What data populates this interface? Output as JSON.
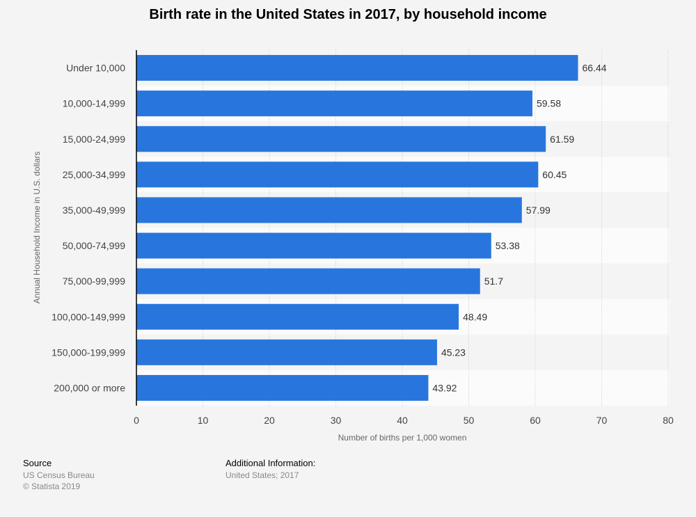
{
  "chart_data": {
    "type": "bar",
    "orientation": "horizontal",
    "title": "Birth rate in the United States in 2017, by household income",
    "ylabel": "Annual Household Income in U.S. dollars",
    "xlabel": "Number of births per 1,000 women",
    "xlim": [
      0,
      80
    ],
    "xticks": [
      0,
      10,
      20,
      30,
      40,
      50,
      60,
      70,
      80
    ],
    "grid": true,
    "categories": [
      "Under 10,000",
      "10,000-14,999",
      "15,000-24,999",
      "25,000-34,999",
      "35,000-49,999",
      "50,000-74,999",
      "75,000-99,999",
      "100,000-149,999",
      "150,000-199,999",
      "200,000 or more"
    ],
    "values": [
      66.44,
      59.58,
      61.59,
      60.45,
      57.99,
      53.38,
      51.7,
      48.49,
      45.23,
      43.92
    ],
    "value_labels": [
      "66.44",
      "59.58",
      "61.59",
      "60.45",
      "57.99",
      "53.38",
      "51.7",
      "48.49",
      "45.23",
      "43.92"
    ],
    "bar_color": "#2876dd"
  },
  "footer": {
    "source_heading": "Source",
    "source_line1": "US Census Bureau",
    "source_line2": "© Statista 2019",
    "info_heading": "Additional Information:",
    "info_line1": "United States; 2017"
  }
}
